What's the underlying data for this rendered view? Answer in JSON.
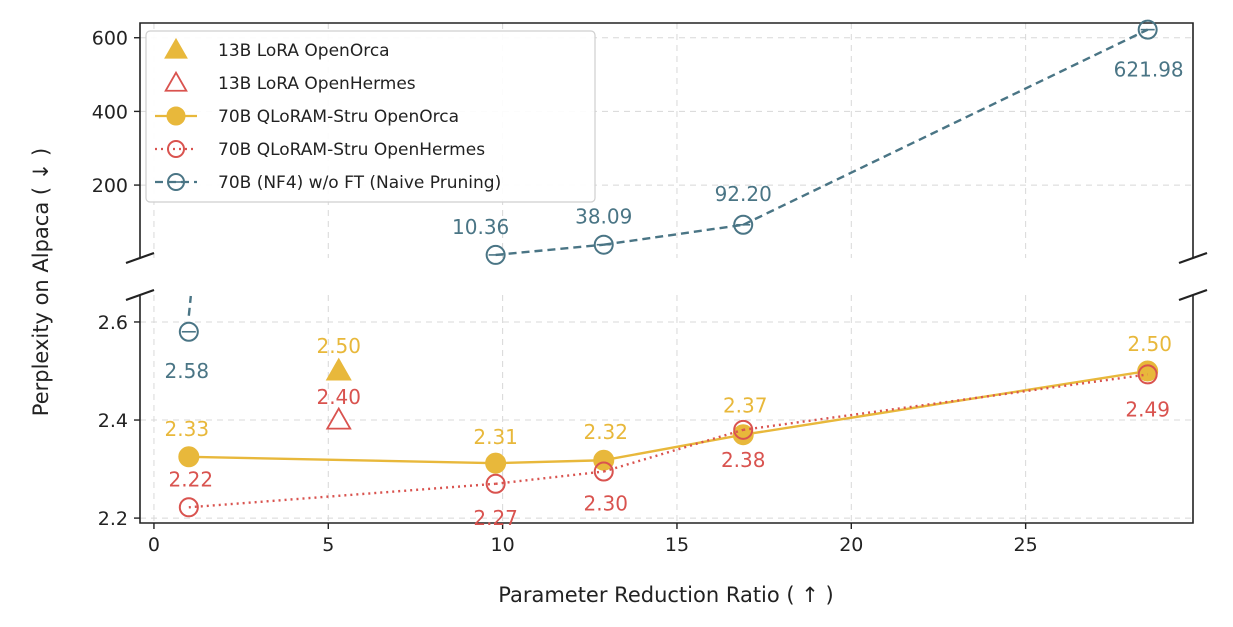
{
  "chart_data": {
    "type": "line",
    "xlabel": "Parameter Reduction Ratio ( ↑ )",
    "ylabel": "Perplexity on Alpaca ( ↓ )",
    "xlim": [
      -0.4,
      29.8
    ],
    "x_ticks": [
      0,
      5,
      10,
      15,
      20,
      25
    ],
    "y_top_lim": [
      2,
      640
    ],
    "y_top_ticks": [
      200,
      400,
      600
    ],
    "y_bottom_lim": [
      2.19,
      2.655
    ],
    "y_bottom_ticks": [
      2.2,
      2.4,
      2.6
    ],
    "broken_y_axis": true,
    "grid": true,
    "legend_placement": "top-left",
    "series": [
      {
        "name": "13B LoRA OpenOrca",
        "color": "#E8B83B",
        "marker": "triangle-filled",
        "line": "none",
        "points": [
          {
            "x": 5.3,
            "y": 2.5
          }
        ],
        "labels": [
          "2.50"
        ]
      },
      {
        "name": "13B LoRA OpenHermes",
        "color": "#D9534F",
        "marker": "triangle-open",
        "line": "none",
        "points": [
          {
            "x": 5.3,
            "y": 2.4
          }
        ],
        "labels": [
          "2.40"
        ]
      },
      {
        "name": "70B QLoRAM-Stru OpenOrca",
        "color": "#E8B83B",
        "marker": "circle-filled",
        "line": "solid",
        "points": [
          {
            "x": 1.0,
            "y": 2.325
          },
          {
            "x": 9.8,
            "y": 2.312
          },
          {
            "x": 12.9,
            "y": 2.318
          },
          {
            "x": 16.9,
            "y": 2.37
          },
          {
            "x": 28.5,
            "y": 2.5
          }
        ],
        "labels": [
          "2.33",
          "2.31",
          "2.32",
          "2.37",
          "2.50"
        ]
      },
      {
        "name": "70B QLoRAM-Stru OpenHermes",
        "color": "#D9534F",
        "marker": "circle-open",
        "line": "dotted",
        "points": [
          {
            "x": 1.0,
            "y": 2.222
          },
          {
            "x": 9.8,
            "y": 2.27
          },
          {
            "x": 12.9,
            "y": 2.295
          },
          {
            "x": 16.9,
            "y": 2.38
          },
          {
            "x": 28.5,
            "y": 2.493
          }
        ],
        "labels": [
          "2.22",
          "2.27",
          "2.30",
          "2.38",
          "2.49"
        ]
      },
      {
        "name": "70B (NF4) w/o FT (Naive Pruning)",
        "color": "#4A7585",
        "marker": "circle-dot-open",
        "line": "dashed",
        "points": [
          {
            "x": 1.0,
            "y": 2.58
          },
          {
            "x": 9.8,
            "y": 10.36
          },
          {
            "x": 12.9,
            "y": 38.09
          },
          {
            "x": 16.9,
            "y": 92.2
          },
          {
            "x": 28.5,
            "y": 621.98
          }
        ],
        "labels": [
          "2.58",
          "10.36",
          "38.09",
          "92.20",
          "621.98"
        ]
      }
    ]
  }
}
